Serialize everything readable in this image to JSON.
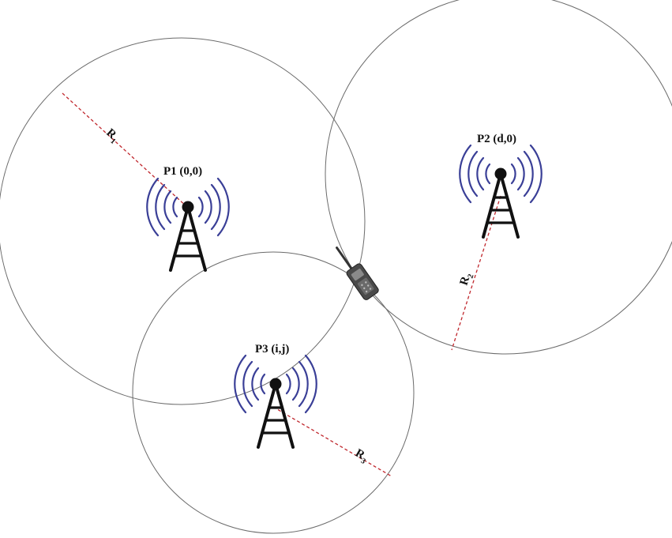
{
  "towers": [
    {
      "id": "p1",
      "label": "P1 (0,0)",
      "radius_label": "R",
      "radius_sub": "1"
    },
    {
      "id": "p2",
      "label": "P2 (d,0)",
      "radius_label": "R",
      "radius_sub": "2"
    },
    {
      "id": "p3",
      "label": "P3 (i,j)",
      "radius_label": "R",
      "radius_sub": "3"
    }
  ],
  "colors": {
    "circle": "#6b6b6b",
    "radius_line": "#c0272d",
    "signal_waves": "#3a3f97",
    "tower": "#111111"
  },
  "device": "handheld-radio-icon"
}
